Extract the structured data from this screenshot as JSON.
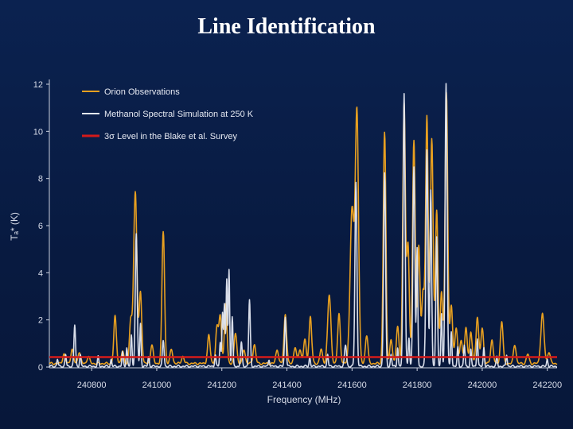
{
  "slide": {
    "title": "Line Identification"
  },
  "chart_data": {
    "type": "line",
    "xlabel": "Frequency (MHz)",
    "ylabel": "Tₐ* (K)",
    "xlim": [
      240670,
      242230
    ],
    "ylim": [
      0,
      12
    ],
    "xticks": [
      240800,
      241000,
      241200,
      241400,
      241600,
      241800,
      242000,
      242200
    ],
    "yticks": [
      0,
      2,
      4,
      6,
      8,
      10,
      12
    ],
    "legend_position": "top-left",
    "colors": {
      "orion": "#e8a020",
      "simulation": "#e4e8f2",
      "threshold": "#d41a1a"
    },
    "legend": [
      "Orion Observations",
      "Methanol Spectral Simulation at 250 K",
      "3σ Level in the Blake et al. Survey"
    ],
    "series": [
      {
        "name": "Orion Observations",
        "baseline": 0.15,
        "peaks": [
          [
            240715,
            0.4,
            4
          ],
          [
            240740,
            0.6,
            4
          ],
          [
            240762,
            0.5,
            4
          ],
          [
            240790,
            0.3,
            4
          ],
          [
            240872,
            2.0,
            4
          ],
          [
            240895,
            0.5,
            4
          ],
          [
            240920,
            1.8,
            4
          ],
          [
            240934,
            7.3,
            5
          ],
          [
            240950,
            3.0,
            4
          ],
          [
            240985,
            0.8,
            4
          ],
          [
            241020,
            5.6,
            4
          ],
          [
            241045,
            0.6,
            4
          ],
          [
            241080,
            0.3,
            4
          ],
          [
            241160,
            1.2,
            4
          ],
          [
            241185,
            1.5,
            4
          ],
          [
            241195,
            2.0,
            4
          ],
          [
            241212,
            2.5,
            4
          ],
          [
            241242,
            1.3,
            4
          ],
          [
            241268,
            0.6,
            4
          ],
          [
            241300,
            0.8,
            4
          ],
          [
            241370,
            0.6,
            4
          ],
          [
            241395,
            2.1,
            4
          ],
          [
            241425,
            0.7,
            4
          ],
          [
            241440,
            0.6,
            4
          ],
          [
            241455,
            1.0,
            4
          ],
          [
            241472,
            2.0,
            4
          ],
          [
            241505,
            0.6,
            4
          ],
          [
            241530,
            2.9,
            5
          ],
          [
            241560,
            2.1,
            4
          ],
          [
            241600,
            6.5,
            6
          ],
          [
            241615,
            10.6,
            5
          ],
          [
            241645,
            1.2,
            4
          ],
          [
            241700,
            9.8,
            4
          ],
          [
            241720,
            1.0,
            4
          ],
          [
            241740,
            1.6,
            4
          ],
          [
            241760,
            11.0,
            4
          ],
          [
            241772,
            5.0,
            4
          ],
          [
            241790,
            9.5,
            4
          ],
          [
            241805,
            5.0,
            4
          ],
          [
            241818,
            3.0,
            4
          ],
          [
            241830,
            10.5,
            4
          ],
          [
            241845,
            9.5,
            4
          ],
          [
            241860,
            6.5,
            4
          ],
          [
            241875,
            3.0,
            4
          ],
          [
            241890,
            11.5,
            4
          ],
          [
            241905,
            2.5,
            4
          ],
          [
            241920,
            1.5,
            4
          ],
          [
            241935,
            1.0,
            4
          ],
          [
            241950,
            1.5,
            4
          ],
          [
            241965,
            1.3,
            4
          ],
          [
            241985,
            2.0,
            4
          ],
          [
            242000,
            1.5,
            4
          ],
          [
            242030,
            1.0,
            4
          ],
          [
            242060,
            1.8,
            4
          ],
          [
            242100,
            0.8,
            4
          ],
          [
            242140,
            0.4,
            4
          ],
          [
            242185,
            2.1,
            5
          ],
          [
            242205,
            0.5,
            4
          ]
        ]
      },
      {
        "name": "Methanol Spectral Simulation at 250 K",
        "baseline": 0.03,
        "peaks": [
          [
            240695,
            0.3,
            2
          ],
          [
            240720,
            0.5,
            2
          ],
          [
            240748,
            1.75,
            2.5
          ],
          [
            240765,
            0.5,
            2
          ],
          [
            240820,
            0.4,
            2
          ],
          [
            240860,
            0.3,
            2
          ],
          [
            240895,
            0.6,
            2
          ],
          [
            240908,
            0.8,
            2
          ],
          [
            240922,
            1.3,
            2
          ],
          [
            240937,
            5.6,
            3
          ],
          [
            240950,
            1.8,
            2
          ],
          [
            240975,
            0.4,
            2
          ],
          [
            241020,
            1.1,
            2.5
          ],
          [
            241180,
            0.5,
            2
          ],
          [
            241195,
            1.0,
            2
          ],
          [
            241202,
            2.3,
            2
          ],
          [
            241208,
            2.6,
            2
          ],
          [
            241215,
            3.7,
            2
          ],
          [
            241222,
            4.1,
            2
          ],
          [
            241232,
            2.1,
            2
          ],
          [
            241260,
            1.0,
            2.5
          ],
          [
            241285,
            2.8,
            2.5
          ],
          [
            241345,
            0.3,
            2
          ],
          [
            241395,
            2.1,
            2.5
          ],
          [
            241470,
            0.4,
            2
          ],
          [
            241525,
            0.5,
            2
          ],
          [
            241580,
            0.9,
            3
          ],
          [
            241612,
            7.8,
            3
          ],
          [
            241700,
            8.2,
            3
          ],
          [
            241720,
            0.5,
            2
          ],
          [
            241740,
            0.8,
            2
          ],
          [
            241760,
            11.6,
            3
          ],
          [
            241775,
            1.2,
            2
          ],
          [
            241790,
            8.5,
            3
          ],
          [
            241800,
            5.0,
            2
          ],
          [
            241830,
            9.2,
            3
          ],
          [
            241842,
            7.5,
            2.5
          ],
          [
            241860,
            5.5,
            2.5
          ],
          [
            241875,
            2.2,
            2
          ],
          [
            241889,
            12.0,
            3
          ],
          [
            241905,
            1.5,
            2
          ],
          [
            241925,
            0.8,
            2
          ],
          [
            241945,
            0.9,
            2
          ],
          [
            241965,
            0.7,
            2
          ],
          [
            241985,
            1.2,
            2
          ],
          [
            242005,
            0.8,
            2
          ],
          [
            242045,
            0.4,
            2
          ],
          [
            242075,
            0.5,
            2
          ],
          [
            242200,
            0.3,
            2
          ]
        ]
      },
      {
        "name": "3σ Level in the Blake et al. Survey",
        "constant": 0.42
      }
    ]
  }
}
